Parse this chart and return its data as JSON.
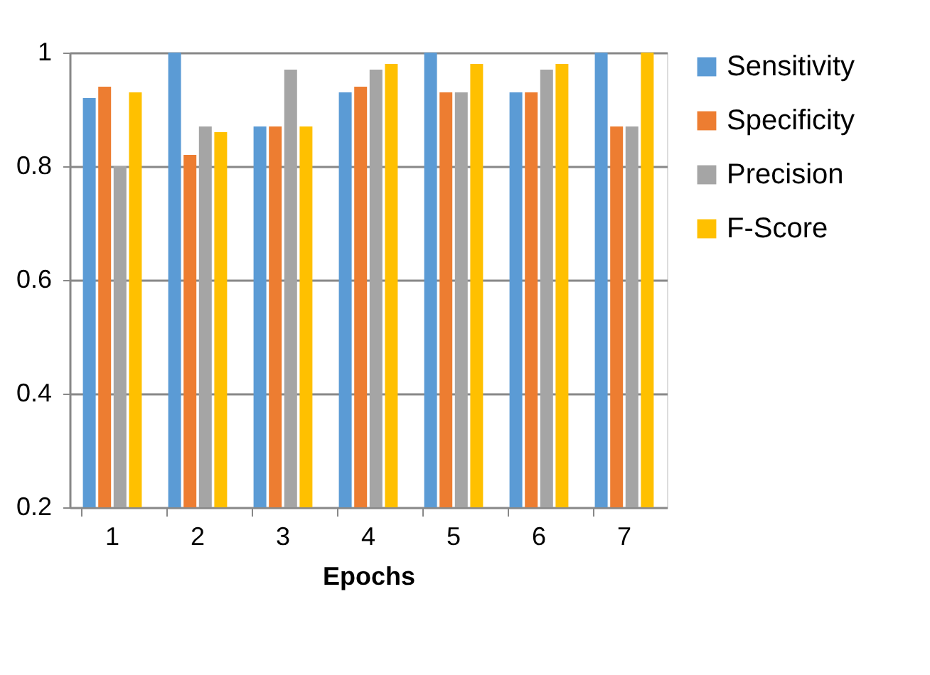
{
  "chart_data": {
    "type": "bar",
    "xlabel": "Epochs",
    "categories": [
      "1",
      "2",
      "3",
      "4",
      "5",
      "6",
      "7"
    ],
    "series": [
      {
        "name": "Sensitivity",
        "color": "#5b9bd5",
        "values": [
          0.92,
          1.0,
          0.87,
          0.93,
          1.0,
          0.93,
          1.0
        ]
      },
      {
        "name": "Specificity",
        "color": "#ed7d31",
        "values": [
          0.94,
          0.82,
          0.87,
          0.94,
          0.93,
          0.93,
          0.87
        ]
      },
      {
        "name": "Precision",
        "color": "#a5a5a5",
        "values": [
          0.8,
          0.87,
          0.97,
          0.97,
          0.93,
          0.97,
          0.87
        ]
      },
      {
        "name": "F-Score",
        "color": "#ffc000",
        "values": [
          0.93,
          0.86,
          0.87,
          0.98,
          0.98,
          0.98,
          1.0
        ]
      }
    ],
    "ylim": [
      0.2,
      1
    ],
    "yticks": [
      0.2,
      0.4,
      0.6,
      0.8,
      1
    ],
    "grid": "y",
    "legend": "right"
  }
}
